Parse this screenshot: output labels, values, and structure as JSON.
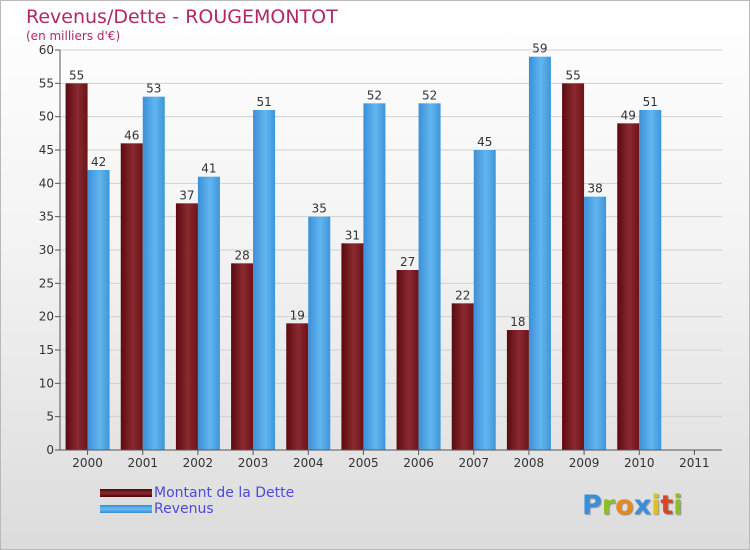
{
  "header": {
    "title": "Revenus/Dette - ROUGEMONTOT",
    "subtitle": "(en milliers d'€)"
  },
  "logo": {
    "text": "Proxiti"
  },
  "colors": {
    "dette": "#7a1a1f",
    "revenus": "#4da6e6",
    "accent": "#b0286a"
  },
  "chart_data": {
    "type": "bar",
    "title": "Revenus/Dette - ROUGEMONTOT",
    "subtitle": "(en milliers d'€)",
    "categories": [
      "2000",
      "2001",
      "2002",
      "2003",
      "2004",
      "2005",
      "2006",
      "2007",
      "2008",
      "2009",
      "2010",
      "2011"
    ],
    "series": [
      {
        "name": "Montant de la Dette",
        "values": [
          55,
          46,
          37,
          28,
          19,
          31,
          27,
          22,
          18,
          55,
          49,
          null
        ]
      },
      {
        "name": "Revenus",
        "values": [
          42,
          53,
          41,
          51,
          35,
          52,
          52,
          45,
          59,
          38,
          51,
          null
        ]
      }
    ],
    "ylim": [
      0,
      60
    ],
    "yticks": [
      0,
      5,
      10,
      15,
      20,
      25,
      30,
      35,
      40,
      45,
      50,
      55,
      60
    ],
    "grid": true,
    "legend": "bottom-left"
  }
}
